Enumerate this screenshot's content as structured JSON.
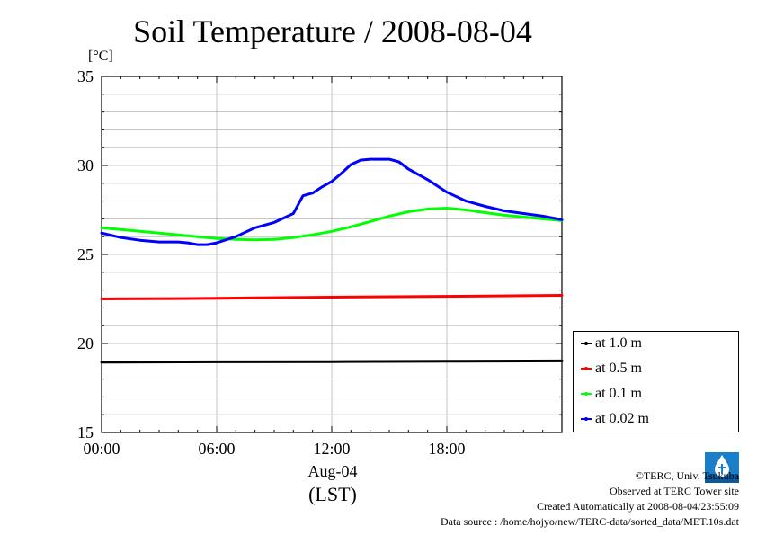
{
  "chart_data": {
    "type": "line",
    "title": "Soil Temperature / 2008-08-04",
    "ylabel": "[°C]",
    "xlabel_date": "Aug-04",
    "xlabel_zone": "(LST)",
    "xlim": [
      0,
      24
    ],
    "ylim": [
      15,
      35
    ],
    "x_ticks": [
      0,
      6,
      12,
      18
    ],
    "x_tick_labels": [
      "00:00",
      "06:00",
      "12:00",
      "18:00"
    ],
    "y_ticks": [
      15,
      20,
      25,
      30,
      35
    ],
    "y_tick_labels": [
      "15",
      "20",
      "25",
      "30",
      "35"
    ],
    "grid": true,
    "legend_position": "right",
    "series": [
      {
        "name": "at 1.0 m",
        "color": "#000000",
        "x": [
          0,
          6,
          12,
          18,
          24
        ],
        "values": [
          18.95,
          18.97,
          18.98,
          19.0,
          19.02
        ]
      },
      {
        "name": "at 0.5 m",
        "color": "#ff0000",
        "x": [
          0,
          4,
          8,
          12,
          16,
          20,
          24
        ],
        "values": [
          22.5,
          22.52,
          22.56,
          22.6,
          22.63,
          22.66,
          22.7
        ]
      },
      {
        "name": "at 0.1 m",
        "color": "#00ff00",
        "x": [
          0,
          1,
          2,
          3,
          4,
          5,
          6,
          7,
          8,
          9,
          10,
          11,
          12,
          13,
          14,
          15,
          16,
          17,
          18,
          19,
          20,
          21,
          22,
          23,
          24
        ],
        "values": [
          26.5,
          26.4,
          26.3,
          26.2,
          26.1,
          26.0,
          25.9,
          25.85,
          25.82,
          25.85,
          25.95,
          26.1,
          26.3,
          26.55,
          26.85,
          27.15,
          27.4,
          27.55,
          27.6,
          27.5,
          27.35,
          27.2,
          27.1,
          27.0,
          26.9
        ]
      },
      {
        "name": "at 0.02 m",
        "color": "#0000ff",
        "x": [
          0,
          1,
          2,
          3,
          4,
          4.5,
          5,
          5.5,
          6,
          7,
          8,
          9,
          10,
          10.5,
          11,
          11.5,
          12,
          12.5,
          13,
          13.5,
          14,
          15,
          15.5,
          16,
          16.5,
          17,
          18,
          19,
          20,
          21,
          22,
          23,
          24
        ],
        "values": [
          26.2,
          25.95,
          25.8,
          25.7,
          25.7,
          25.65,
          25.55,
          25.55,
          25.65,
          26.0,
          26.5,
          26.8,
          27.3,
          28.3,
          28.45,
          28.8,
          29.1,
          29.55,
          30.05,
          30.3,
          30.35,
          30.35,
          30.2,
          29.8,
          29.5,
          29.2,
          28.5,
          28.0,
          27.7,
          27.45,
          27.3,
          27.15,
          26.95
        ]
      }
    ]
  },
  "credits": {
    "copyright": "©TERC, Univ. Tsukuba",
    "observed": "Observed at TERC Tower site",
    "created": "Created Automatically at 2008-08-04/23:55:09",
    "source": "Data source : /home/hojyo/new/TERC-data/sorted_data/MET.10s.dat"
  },
  "logo_icon": "terc-logo-icon"
}
